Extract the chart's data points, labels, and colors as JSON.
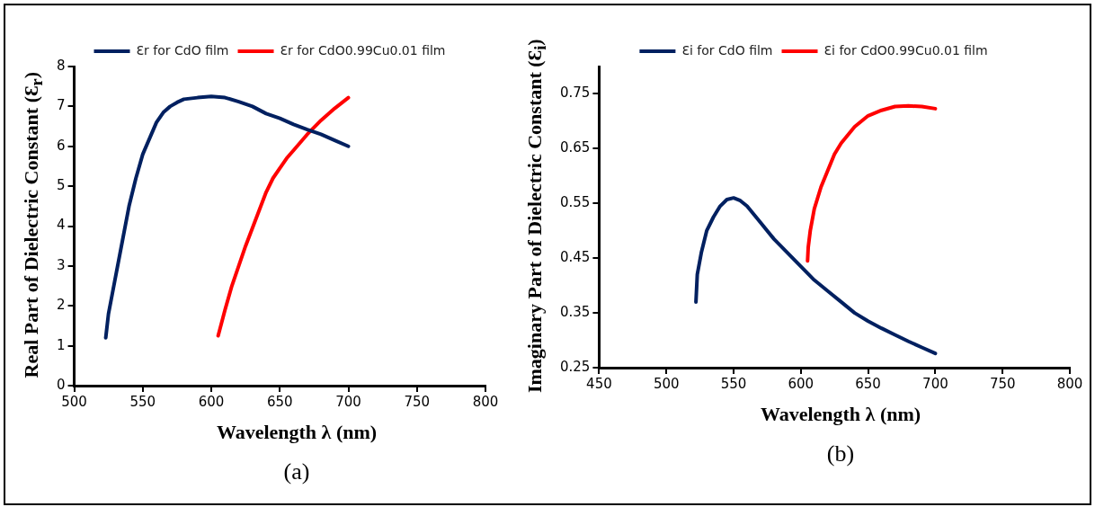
{
  "chart_data": [
    {
      "type": "line",
      "xlabel": "Wavelength λ (nm)",
      "ylabel": "Real Part of Dielectric Constant (Ɛ$_{r}$)",
      "xlim": [
        500,
        800
      ],
      "xticks": [
        500,
        550,
        600,
        650,
        700,
        750,
        800
      ],
      "ylim": [
        0,
        8
      ],
      "yticks": [
        0,
        1,
        2,
        3,
        4,
        5,
        6,
        7,
        8
      ],
      "grid": false,
      "legend": "top",
      "marker": "none",
      "line_style": "solid",
      "annotations": [
        "(a)"
      ],
      "series": [
        {
          "name": "Ɛr for CdO film",
          "color": "#002060",
          "x": [
            523,
            525,
            530,
            535,
            540,
            545,
            550,
            555,
            560,
            565,
            570,
            575,
            580,
            590,
            600,
            610,
            620,
            630,
            640,
            650,
            660,
            670,
            680,
            690,
            700
          ],
          "values": [
            1.2,
            1.8,
            2.7,
            3.6,
            4.5,
            5.2,
            5.8,
            6.2,
            6.6,
            6.85,
            7.0,
            7.1,
            7.18,
            7.22,
            7.25,
            7.22,
            7.12,
            7.0,
            6.82,
            6.7,
            6.55,
            6.42,
            6.3,
            6.15,
            6.0
          ]
        },
        {
          "name": "Ɛr for CdO0.99Cu0.01 film",
          "color": "#ff0000",
          "x": [
            605,
            610,
            615,
            620,
            625,
            630,
            635,
            640,
            645,
            650,
            655,
            660,
            670,
            680,
            690,
            700
          ],
          "values": [
            1.25,
            1.9,
            2.5,
            3.0,
            3.5,
            3.95,
            4.4,
            4.85,
            5.2,
            5.45,
            5.7,
            5.9,
            6.3,
            6.65,
            6.95,
            7.22
          ]
        }
      ]
    },
    {
      "type": "line",
      "xlabel": "Wavelength λ (nm)",
      "ylabel": "Imaginary Part of Dielectric Constant (Ɛ$_{i}$)",
      "xlim": [
        450,
        800
      ],
      "xticks": [
        450,
        500,
        550,
        600,
        650,
        700,
        750,
        800
      ],
      "ylim": [
        0.25,
        0.8
      ],
      "yticks": [
        0.25,
        0.35,
        0.45,
        0.55,
        0.65,
        0.75
      ],
      "grid": false,
      "legend": "top",
      "marker": "none",
      "line_style": "solid",
      "annotations": [
        "(b)"
      ],
      "series": [
        {
          "name": "Ɛi for CdO film",
          "color": "#002060",
          "x": [
            522,
            523,
            526,
            530,
            535,
            540,
            545,
            550,
            555,
            560,
            570,
            580,
            590,
            600,
            610,
            620,
            630,
            640,
            650,
            660,
            670,
            680,
            690,
            700
          ],
          "values": [
            0.37,
            0.42,
            0.46,
            0.5,
            0.525,
            0.545,
            0.557,
            0.56,
            0.555,
            0.545,
            0.515,
            0.485,
            0.46,
            0.435,
            0.41,
            0.39,
            0.37,
            0.35,
            0.335,
            0.322,
            0.31,
            0.298,
            0.287,
            0.276
          ]
        },
        {
          "name": "Ɛi for CdO0.99Cu0.01 film",
          "color": "#ff0000",
          "x": [
            605,
            605.5,
            607,
            610,
            615,
            620,
            625,
            630,
            640,
            650,
            660,
            670,
            680,
            690,
            700
          ],
          "values": [
            0.445,
            0.47,
            0.5,
            0.54,
            0.58,
            0.61,
            0.64,
            0.66,
            0.69,
            0.71,
            0.72,
            0.727,
            0.728,
            0.727,
            0.723
          ]
        }
      ]
    }
  ]
}
